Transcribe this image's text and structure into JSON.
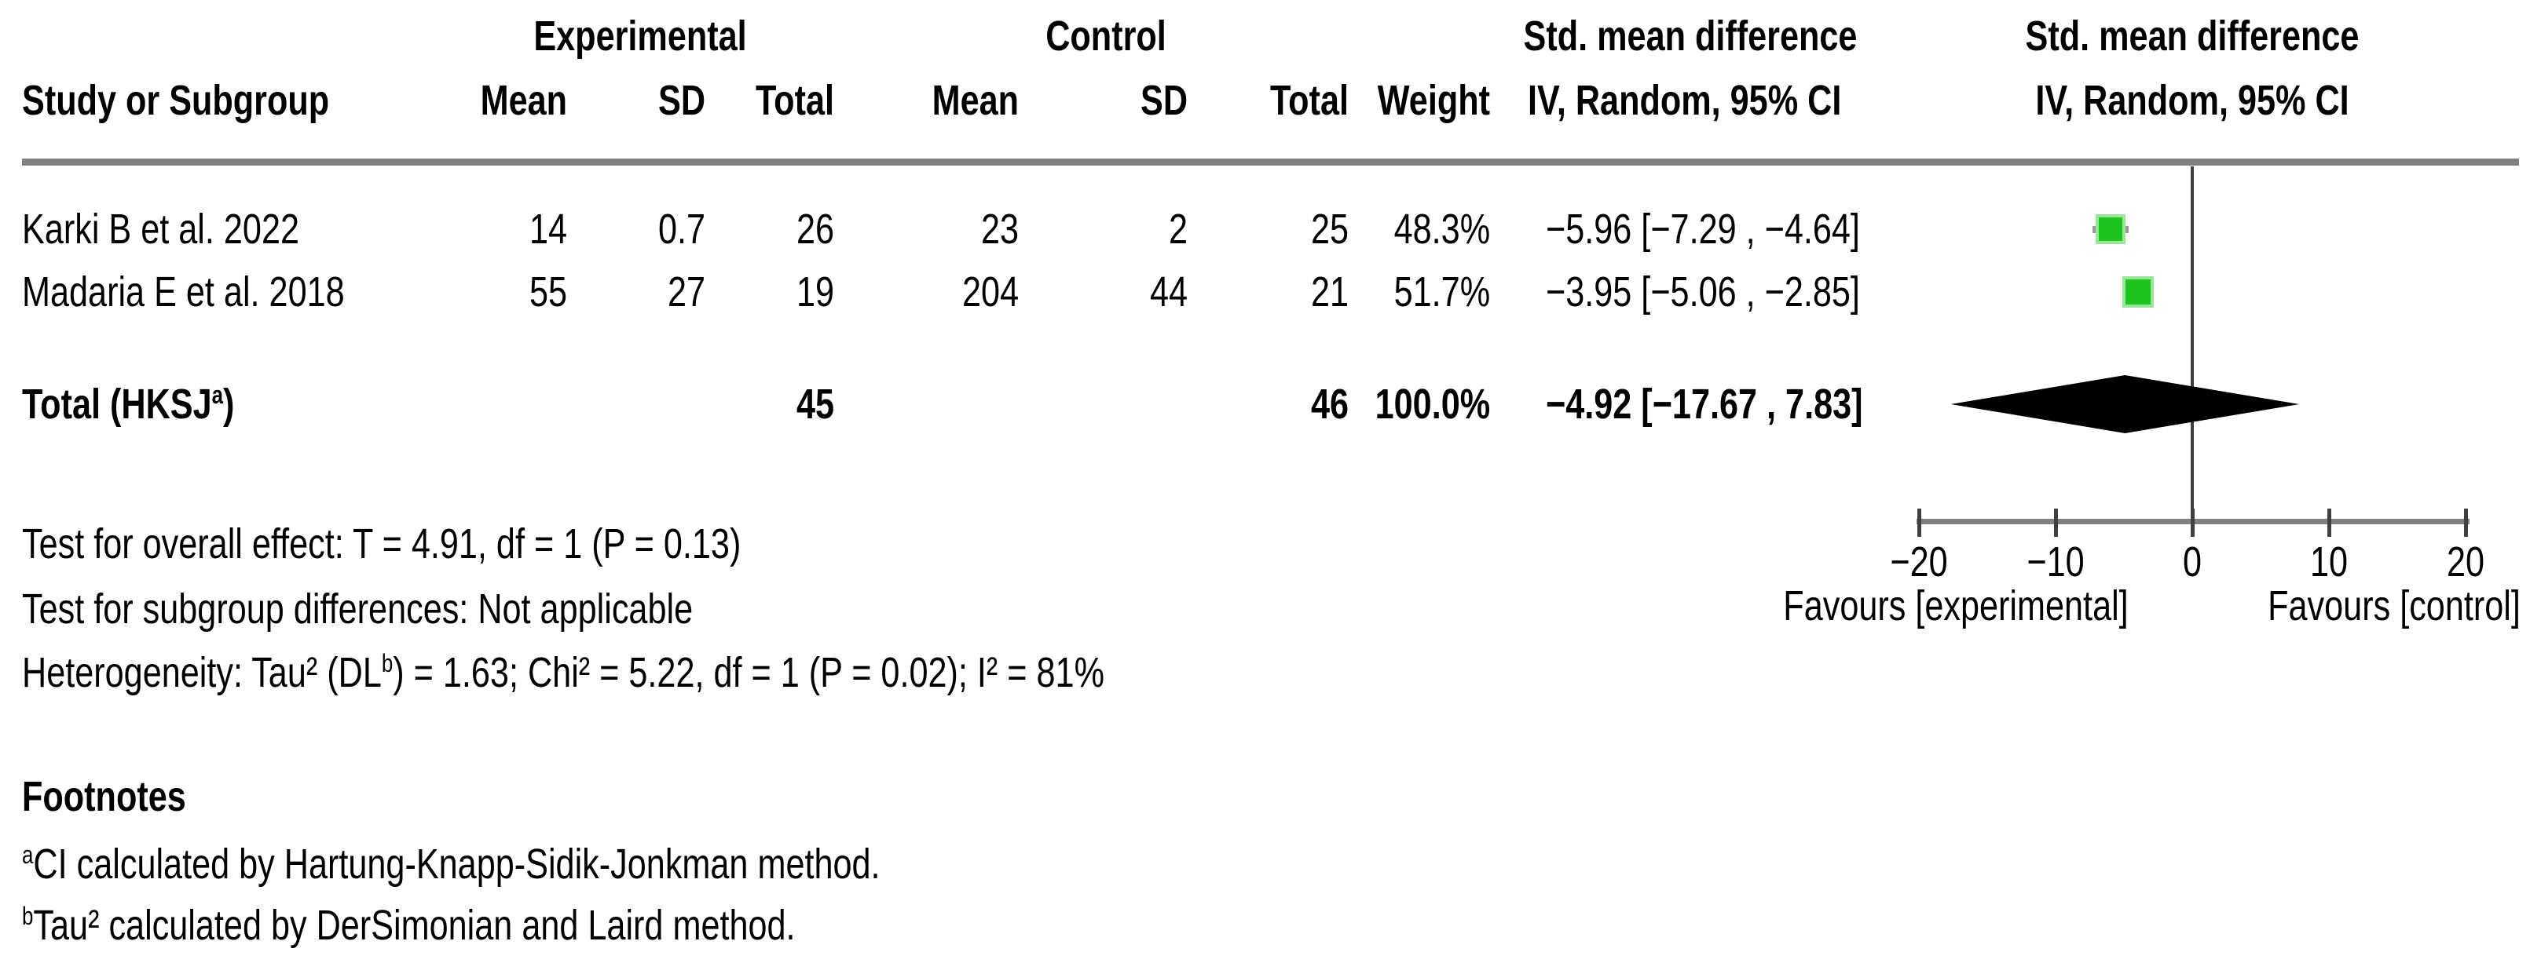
{
  "group_headers": {
    "experimental": "Experimental",
    "control": "Control",
    "smd_text_col": "Std. mean difference",
    "smd_plot_col": "Std. mean difference"
  },
  "columns": {
    "study": "Study or Subgroup",
    "exp_mean": "Mean",
    "exp_sd": "SD",
    "exp_total": "Total",
    "ctl_mean": "Mean",
    "ctl_sd": "SD",
    "ctl_total": "Total",
    "weight": "Weight",
    "iv_text_col": "IV, Random, 95% CI",
    "iv_plot_col": "IV, Random, 95% CI"
  },
  "chart_data": {
    "type": "forest",
    "effect_measure": "Std. mean difference, IV, Random, 95% CI",
    "x_axis": {
      "min": -20,
      "max": 20,
      "ticks": [
        -20,
        -10,
        0,
        10,
        20
      ],
      "tick_labels": [
        "−20",
        "−10",
        "0",
        "10",
        "20"
      ]
    },
    "favours_left": "Favours [experimental]",
    "favours_right": "Favours [control]",
    "studies": [
      {
        "label": "Karki B et al. 2022",
        "exp_mean": "14",
        "exp_sd": "0.7",
        "exp_total": "26",
        "ctl_mean": "23",
        "ctl_sd": "2",
        "ctl_total": "25",
        "weight": "48.3%",
        "weight_pct": 48.3,
        "smd": -5.96,
        "ci_low": -7.29,
        "ci_high": -4.64,
        "ci_text": "−5.96 [−7.29 , −4.64]"
      },
      {
        "label": "Madaria E et al. 2018",
        "exp_mean": "55",
        "exp_sd": "27",
        "exp_total": "19",
        "ctl_mean": "204",
        "ctl_sd": "44",
        "ctl_total": "21",
        "weight": "51.7%",
        "weight_pct": 51.7,
        "smd": -3.95,
        "ci_low": -5.06,
        "ci_high": -2.85,
        "ci_text": "−3.95 [−5.06 , −2.85]"
      }
    ],
    "total": {
      "label_pre": "Total (HKSJ",
      "label_sup": "a",
      "label_post": ")",
      "exp_total": "45",
      "ctl_total": "46",
      "weight": "100.0%",
      "smd": -4.92,
      "ci_low": -17.67,
      "ci_high": 7.83,
      "ci_text": "−4.92 [−17.67 , 7.83]"
    },
    "marker_color": "#1ec41e",
    "marker_border_color": "#98e698",
    "whisker_color": "#9a9a9a",
    "diamond_color": "#000000",
    "axis_color": "#7f7f7f",
    "tick_color": "#3f3f3f"
  },
  "stats": {
    "overall_effect": "Test for overall effect: T = 4.91, df = 1 (P = 0.13)",
    "subgroup_differences": "Test for subgroup differences: Not applicable",
    "heterogeneity_pre": "Heterogeneity: Tau² (DL",
    "heterogeneity_sup": "b",
    "heterogeneity_post": ") = 1.63; Chi² = 5.22, df = 1 (P = 0.02); I² = 81%"
  },
  "footnotes": {
    "heading": "Footnotes",
    "a_sup": "a",
    "a_text": "CI calculated by Hartung-Knapp-Sidik-Jonkman method.",
    "b_sup": "b",
    "b_text": "Tau² calculated by DerSimonian and Laird method."
  }
}
